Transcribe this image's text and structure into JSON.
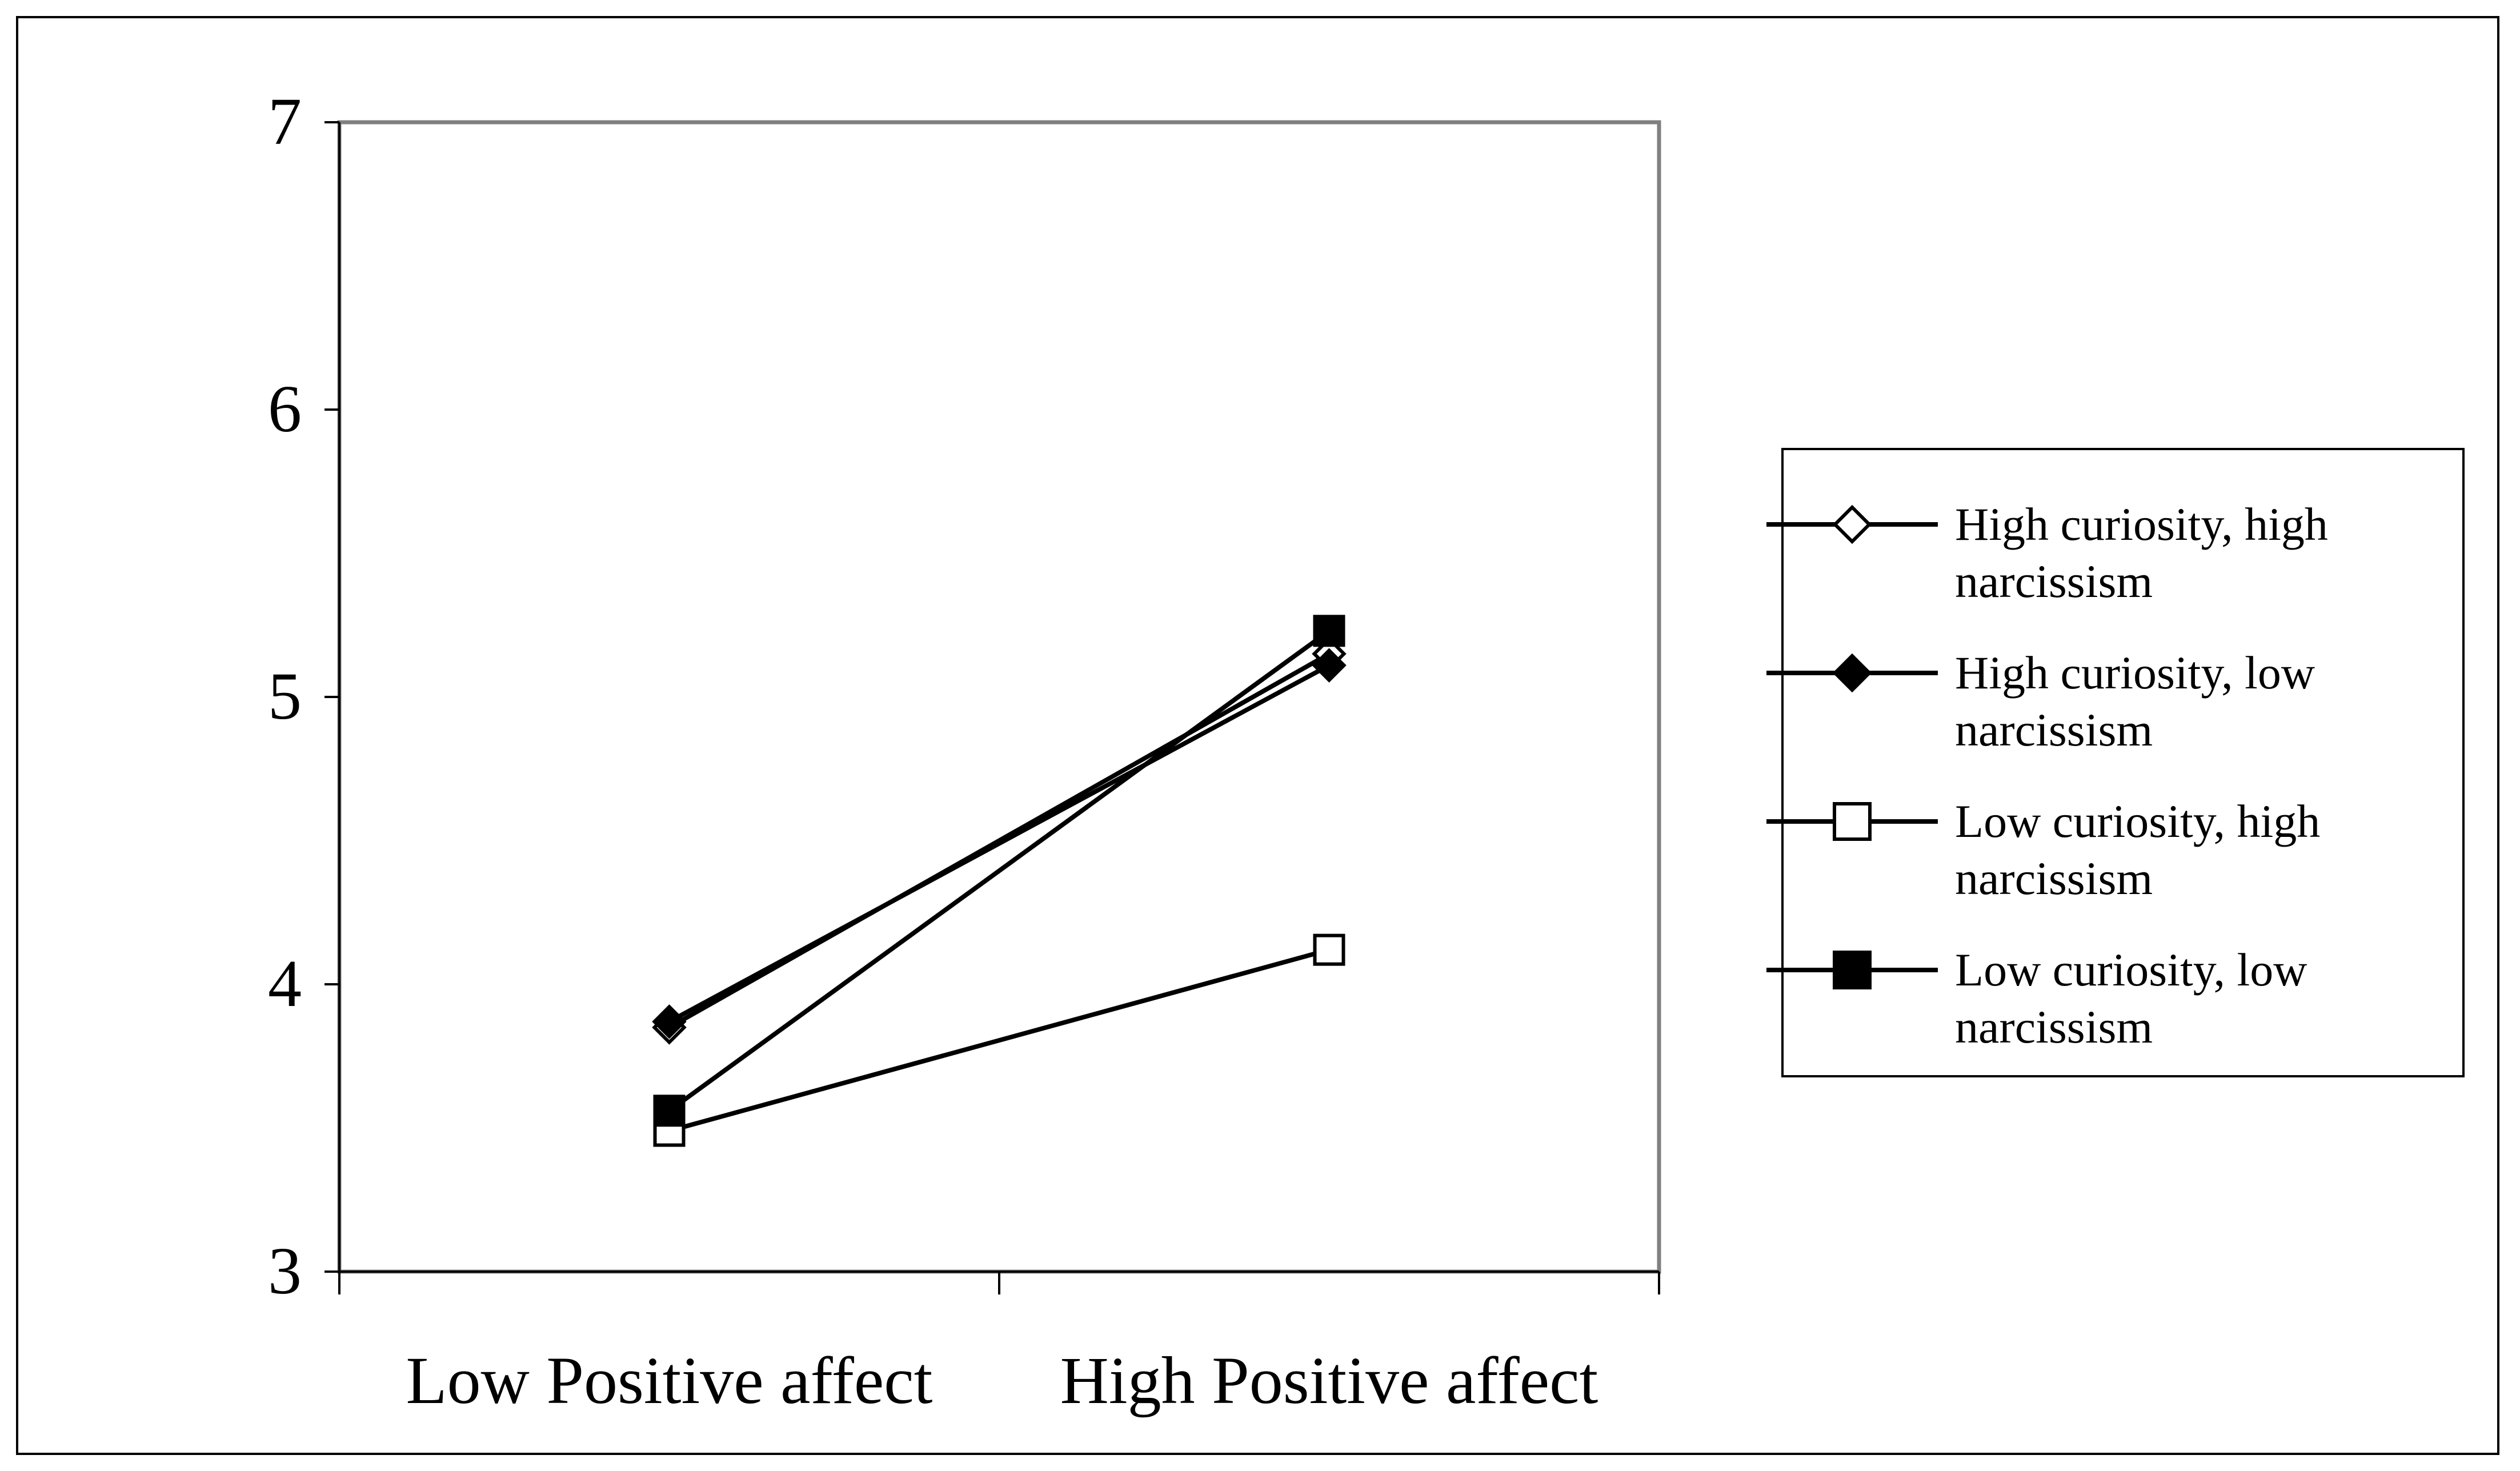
{
  "chart_data": {
    "type": "line",
    "title": "",
    "xlabel": "",
    "ylabel": "",
    "categories": [
      "Low Positive affect",
      "High Positive affect"
    ],
    "ylim": [
      3,
      7
    ],
    "yticks": [
      "3",
      "4",
      "5",
      "6",
      "7"
    ],
    "grid": false,
    "legend_position": "right",
    "series": [
      {
        "name": "High curiosity, high narcissism",
        "marker": "diamond-open",
        "values": [
          3.85,
          5.15
        ]
      },
      {
        "name": "High curiosity, low narcissism",
        "marker": "diamond-filled",
        "values": [
          3.87,
          5.11
        ]
      },
      {
        "name": "Low curiosity, high narcissism",
        "marker": "square-open",
        "values": [
          3.49,
          4.12
        ]
      },
      {
        "name": "Low curiosity, low narcissism",
        "marker": "square-filled",
        "values": [
          3.56,
          5.23
        ]
      }
    ]
  },
  "colors": {
    "line": "#000000",
    "plot_border": "#808080",
    "background": "#ffffff"
  }
}
